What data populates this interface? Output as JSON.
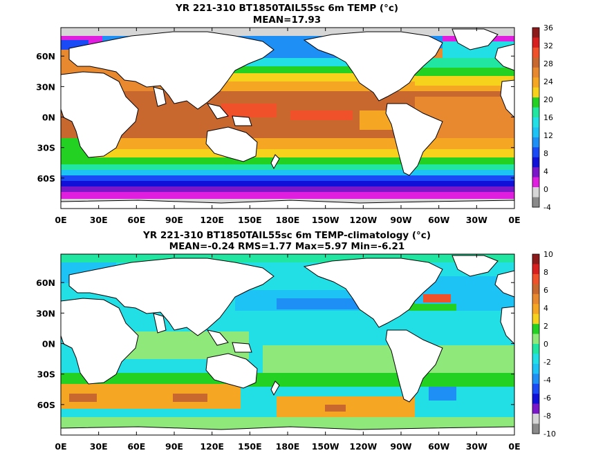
{
  "chart_data": [
    {
      "type": "heatmap",
      "title": "YR 221-310 BT1850TAIL55sc 6m TEMP (°c)",
      "subtitle": "MEAN=17.93",
      "x_ticks": [
        "0E",
        "30E",
        "60E",
        "90E",
        "120E",
        "150E",
        "180E",
        "150W",
        "120W",
        "90W",
        "60W",
        "30W",
        "0E"
      ],
      "y_ticks": [
        "60N",
        "30N",
        "0N",
        "30S",
        "60S"
      ],
      "colorbar": {
        "labels": [
          "36",
          "32",
          "28",
          "24",
          "20",
          "16",
          "12",
          "8",
          "4",
          "0",
          "-4"
        ],
        "colors": [
          "#8c1a1a",
          "#d81f1f",
          "#f0502a",
          "#c8682e",
          "#e8892f",
          "#f5a623",
          "#f7d21c",
          "#22d122",
          "#21e6a1",
          "#22dfe6",
          "#1ec3f5",
          "#1e8ff5",
          "#1a4af5",
          "#1010d8",
          "#7a18c9",
          "#e01ee0",
          "#d6d6d6",
          "#8a8a8a"
        ]
      }
    },
    {
      "type": "heatmap",
      "title": "YR 221-310 BT1850TAIL55sc 6m TEMP-climatology (°c)",
      "subtitle": "MEAN=-0.24   RMS=1.77   Max=5.97   Min=-6.21",
      "x_ticks": [
        "0E",
        "30E",
        "60E",
        "90E",
        "120E",
        "150E",
        "180E",
        "150W",
        "120W",
        "90W",
        "60W",
        "30W",
        "0E"
      ],
      "y_ticks": [
        "60N",
        "30N",
        "0N",
        "30S",
        "60S"
      ],
      "colorbar": {
        "labels": [
          "10",
          "8",
          "6",
          "4",
          "2",
          "0",
          "-2",
          "-4",
          "-6",
          "-8",
          "-10"
        ],
        "colors": [
          "#8c1a1a",
          "#d81f1f",
          "#f0502a",
          "#c8682e",
          "#e8892f",
          "#f5a623",
          "#f7d21c",
          "#22d122",
          "#8fe87a",
          "#21e6a1",
          "#22dfe6",
          "#1ec3f5",
          "#1e8ff5",
          "#1a4af5",
          "#1010d8",
          "#7a18c9",
          "#d6d6d6",
          "#8a8a8a"
        ]
      }
    }
  ]
}
